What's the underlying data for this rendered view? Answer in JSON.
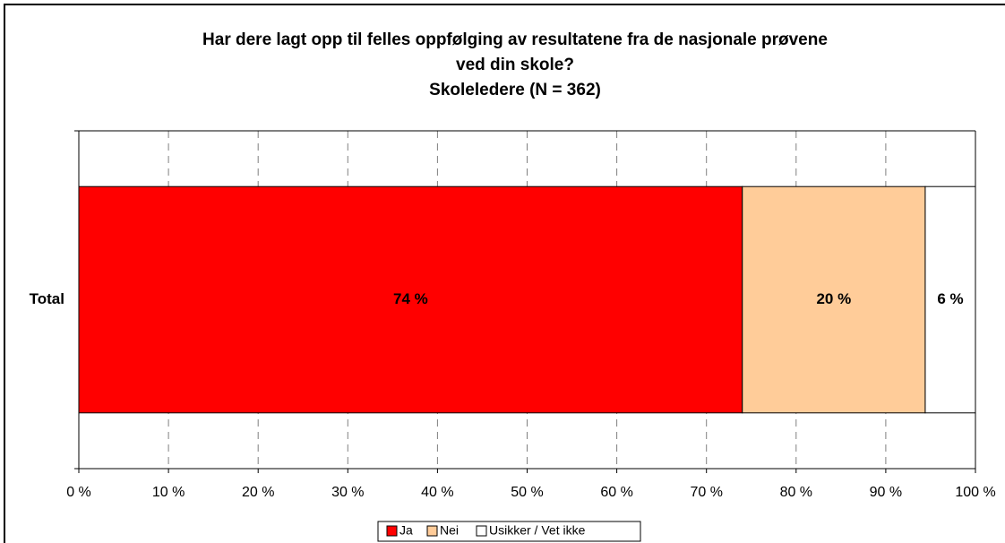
{
  "chart_data": {
    "type": "stacked-bar-horizontal",
    "title": [
      "Har dere lagt opp til felles oppfølging av resultatene fra de nasjonale prøvene",
      "ved din skole?"
    ],
    "subtitle": "Skoleledere (N = 362)",
    "categories": [
      "Total"
    ],
    "series": [
      {
        "name": "Ja",
        "color": "#ff0000",
        "values": [
          74
        ],
        "value_labels": [
          "74 %"
        ]
      },
      {
        "name": "Nei",
        "color": "#ffcc99",
        "values": [
          20.4
        ],
        "value_labels": [
          "20 %"
        ]
      },
      {
        "name": "Usikker / Vet ikke",
        "color": "#ffffff",
        "values": [
          5.6
        ],
        "value_labels": [
          "6 %"
        ]
      }
    ],
    "xlim": [
      0,
      100
    ],
    "xticks": [
      {
        "value": 0,
        "label": "0 %"
      },
      {
        "value": 10,
        "label": "10 %"
      },
      {
        "value": 20,
        "label": "20 %"
      },
      {
        "value": 30,
        "label": "30 %"
      },
      {
        "value": 40,
        "label": "40 %"
      },
      {
        "value": 50,
        "label": "50 %"
      },
      {
        "value": 60,
        "label": "60 %"
      },
      {
        "value": 70,
        "label": "70 %"
      },
      {
        "value": 80,
        "label": "80 %"
      },
      {
        "value": 90,
        "label": "90 %"
      },
      {
        "value": 100,
        "label": "100 %"
      }
    ],
    "grid": true,
    "legend": "bottom"
  }
}
